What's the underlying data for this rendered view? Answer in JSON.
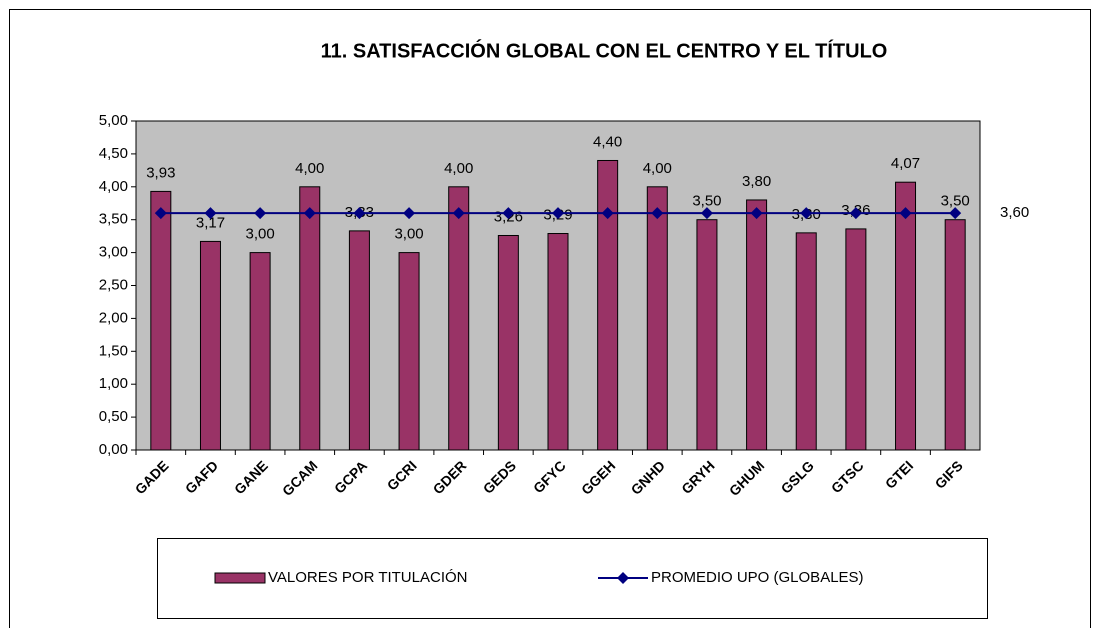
{
  "chart_data": {
    "type": "bar",
    "title": "11. SATISFACCIÓN GLOBAL CON EL CENTRO Y EL TÍTULO",
    "categories": [
      "GADE",
      "GAFD",
      "GANE",
      "GCAM",
      "GCPA",
      "GCRI",
      "GDER",
      "GEDS",
      "GFYC",
      "GGEH",
      "GNHD",
      "GRYH",
      "GHUM",
      "GSLG",
      "GTSC",
      "GTEI",
      "GIFS"
    ],
    "series": [
      {
        "name": "VALORES POR TITULACIÓN",
        "type": "bar",
        "color": "#993366",
        "values": [
          3.93,
          3.17,
          3.0,
          4.0,
          3.33,
          3.0,
          4.0,
          3.26,
          3.29,
          4.4,
          4.0,
          3.5,
          3.8,
          3.3,
          3.36,
          4.07,
          3.5
        ],
        "value_labels": [
          "3,93",
          "3,17",
          "3,00",
          "4,00",
          "3,33",
          "3,00",
          "4,00",
          "3,26",
          "3,29",
          "4,40",
          "4,00",
          "3,50",
          "3,80",
          "3,30",
          "3,36",
          "4,07",
          "3,50"
        ]
      },
      {
        "name": "PROMEDIO UPO (GLOBALES)",
        "type": "line",
        "color": "#000080",
        "values": [
          3.6,
          3.6,
          3.6,
          3.6,
          3.6,
          3.6,
          3.6,
          3.6,
          3.6,
          3.6,
          3.6,
          3.6,
          3.6,
          3.6,
          3.6,
          3.6,
          3.6
        ],
        "value_labels": [
          null,
          null,
          null,
          null,
          null,
          null,
          null,
          null,
          null,
          null,
          null,
          null,
          null,
          null,
          null,
          null,
          "3,60"
        ]
      }
    ],
    "ylim": [
      0,
      5
    ],
    "yticks": [
      {
        "value": 0,
        "label": "0,00"
      },
      {
        "value": 0.5,
        "label": "0,50"
      },
      {
        "value": 1,
        "label": "1,00"
      },
      {
        "value": 1.5,
        "label": "1,50"
      },
      {
        "value": 2,
        "label": "2,00"
      },
      {
        "value": 2.5,
        "label": "2,50"
      },
      {
        "value": 3,
        "label": "3,00"
      },
      {
        "value": 3.5,
        "label": "3,50"
      },
      {
        "value": 4,
        "label": "4,00"
      },
      {
        "value": 4.5,
        "label": "4,50"
      },
      {
        "value": 5,
        "label": "5,00"
      }
    ],
    "plot_background": "#c0c0c0",
    "legend": "bottom"
  }
}
